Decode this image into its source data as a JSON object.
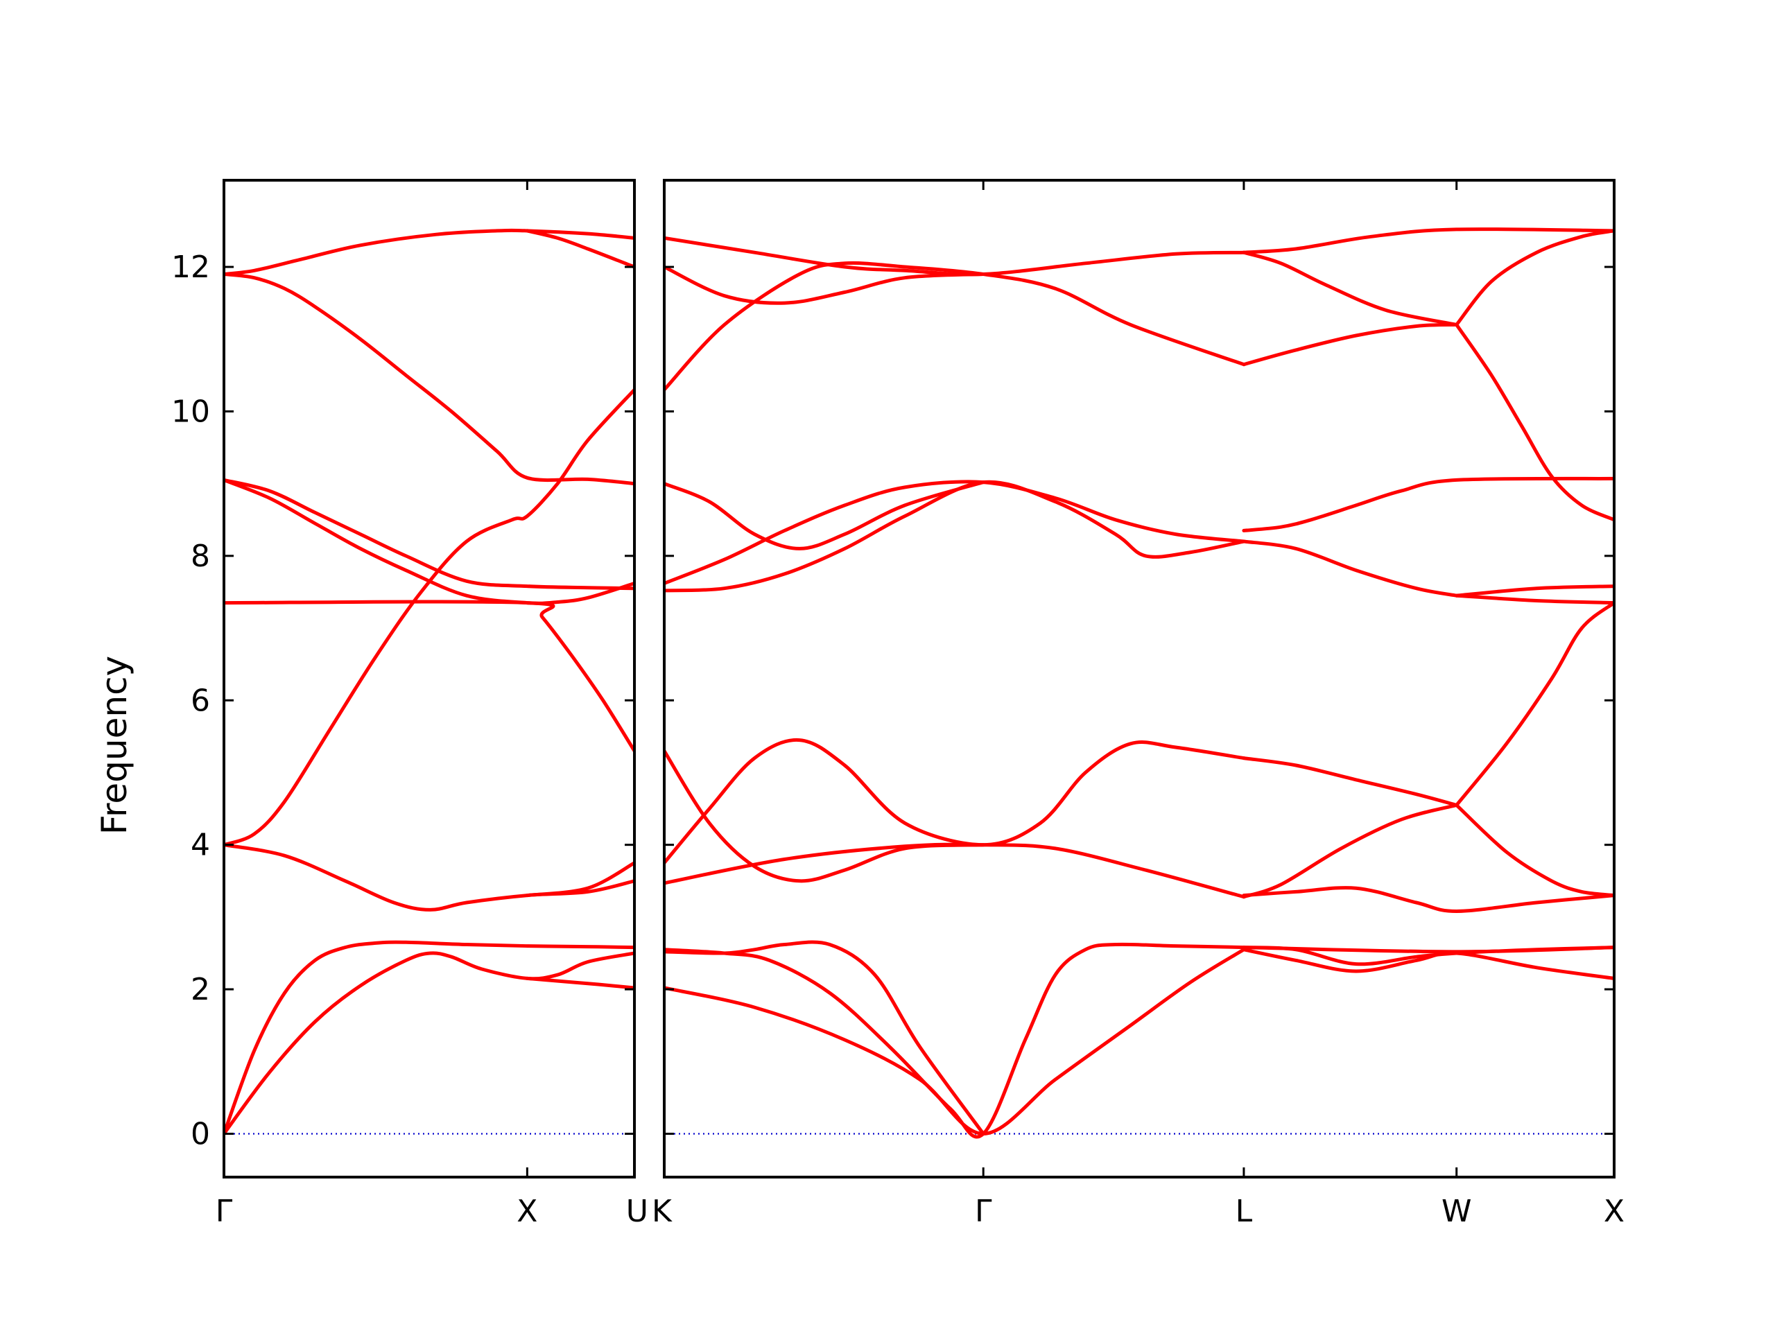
{
  "chart_data": {
    "type": "line",
    "title": "",
    "ylabel": "Frequency",
    "ylim": [
      -0.6,
      13.2
    ],
    "yticks": [
      0,
      2,
      4,
      6,
      8,
      10,
      12
    ],
    "colors": {
      "band": "#ff0000",
      "zero_line": "#0000cc"
    },
    "grid": false,
    "panels": [
      {
        "name": "left",
        "xlim": [
          0,
          1.3536
        ],
        "xticks": [
          {
            "x": 0,
            "label": "Γ"
          },
          {
            "x": 1.0,
            "label": "X"
          },
          {
            "x": 1.3536,
            "label": "U"
          }
        ],
        "series": [
          {
            "x": [
              0,
              0.15,
              0.3,
              0.45,
              0.6,
              0.68,
              0.75,
              0.85,
              1.0,
              1.1,
              1.2,
              1.3536
            ],
            "y": [
              0,
              0.85,
              1.55,
              2.05,
              2.4,
              2.5,
              2.45,
              2.28,
              2.15,
              2.2,
              2.38,
              2.5
            ]
          },
          {
            "x": [
              0,
              0.1,
              0.2,
              0.3,
              0.4,
              0.5,
              0.6,
              0.8,
              1.0,
              1.2,
              1.3536
            ],
            "y": [
              0,
              1.15,
              1.95,
              2.4,
              2.58,
              2.64,
              2.65,
              2.62,
              2.6,
              2.59,
              2.58
            ]
          },
          {
            "x": [
              0,
              0.2,
              0.4,
              0.56,
              0.68,
              0.8,
              1.0,
              1.2,
              1.3536
            ],
            "y": [
              4.0,
              3.85,
              3.5,
              3.2,
              3.1,
              3.2,
              3.3,
              3.35,
              3.5
            ]
          },
          {
            "x": [
              0,
              0.1,
              0.2,
              0.35,
              0.5,
              0.65,
              0.8,
              0.95,
              1.0,
              1.1,
              1.2,
              1.3536
            ],
            "y": [
              4.0,
              4.15,
              4.6,
              5.6,
              6.6,
              7.5,
              8.2,
              8.5,
              8.55,
              9.0,
              9.6,
              10.3
            ]
          },
          {
            "x": [
              0,
              0.15,
              0.3,
              0.45,
              0.6,
              0.8,
              1.0,
              1.2,
              1.3536
            ],
            "y": [
              9.05,
              8.9,
              8.6,
              8.3,
              8.0,
              7.65,
              7.58,
              7.56,
              7.55
            ]
          },
          {
            "x": [
              0,
              0.15,
              0.3,
              0.45,
              0.6,
              0.8,
              1.0,
              1.1,
              1.2,
              1.3536
            ],
            "y": [
              9.05,
              8.8,
              8.45,
              8.1,
              7.8,
              7.45,
              7.35,
              7.36,
              7.42,
              7.62
            ]
          },
          {
            "x": [
              0,
              0.1,
              0.2,
              0.3,
              0.45,
              0.6,
              0.75,
              0.9,
              1.0,
              1.2,
              1.3536
            ],
            "y": [
              11.9,
              11.85,
              11.7,
              11.45,
              11.0,
              10.5,
              10.0,
              9.45,
              9.08,
              9.06,
              9.0
            ]
          },
          {
            "x": [
              0,
              1.0,
              1.05,
              1.15,
              1.25,
              1.3536
            ],
            "y": [
              7.35,
              7.35,
              7.15,
              6.6,
              6.0,
              5.3
            ]
          },
          {
            "x": [
              0,
              0.1,
              0.25,
              0.45,
              0.7,
              0.9,
              1.0,
              1.2,
              1.3536
            ],
            "y": [
              11.9,
              11.95,
              12.1,
              12.3,
              12.45,
              12.5,
              12.5,
              12.46,
              12.4
            ]
          },
          {
            "x": [
              1.0,
              1.1,
              1.2,
              1.3536
            ],
            "y": [
              12.5,
              12.4,
              12.25,
              12.0
            ]
          },
          {
            "x": [
              1.0,
              1.2,
              1.3536
            ],
            "y": [
              2.15,
              2.08,
              2.02
            ]
          },
          {
            "x": [
              1.0,
              1.2,
              1.3536
            ],
            "y": [
              3.3,
              3.4,
              3.75
            ]
          }
        ]
      },
      {
        "name": "right",
        "xlim": [
          0,
          3.1577
        ],
        "xticks": [
          {
            "x": 0,
            "label": "K"
          },
          {
            "x": 1.0607,
            "label": "Γ"
          },
          {
            "x": 1.9267,
            "label": "L"
          },
          {
            "x": 2.6338,
            "label": "W"
          },
          {
            "x": 3.1577,
            "label": "X"
          }
        ],
        "series": [
          {
            "x": [
              0,
              0.3,
              0.6,
              0.85,
              1.0607,
              1.3,
              1.55,
              1.75,
              1.9267
            ],
            "y": [
              2.02,
              1.75,
              1.3,
              0.75,
              0,
              0.75,
              1.5,
              2.1,
              2.55
            ]
          },
          {
            "x": [
              0,
              0.2,
              0.35,
              0.55,
              0.75,
              0.95,
              1.0607,
              1.2,
              1.3,
              1.4,
              1.5,
              1.7,
              1.9267
            ],
            "y": [
              2.55,
              2.5,
              2.4,
              1.95,
              1.2,
              0.35,
              0,
              1.3,
              2.2,
              2.55,
              2.62,
              2.6,
              2.58
            ]
          },
          {
            "x": [
              0,
              0.2,
              0.3,
              0.4,
              0.55,
              0.7,
              0.85,
              1.0607
            ],
            "y": [
              2.52,
              2.5,
              2.55,
              2.62,
              2.62,
              2.2,
              1.2,
              0
            ]
          },
          {
            "x": [
              0,
              0.4,
              0.8,
              1.0607,
              1.3,
              1.6,
              1.9267
            ],
            "y": [
              3.47,
              3.8,
              3.98,
              4.0,
              3.95,
              3.65,
              3.28
            ]
          },
          {
            "x": [
              0,
              0.15,
              0.3,
              0.45,
              0.6,
              0.8,
              1.0607
            ],
            "y": [
              5.3,
              4.3,
              3.7,
              3.5,
              3.65,
              3.95,
              4.0
            ]
          },
          {
            "x": [
              0,
              0.15,
              0.3,
              0.45,
              0.6,
              0.8,
              1.0607,
              1.25,
              1.4,
              1.55,
              1.7,
              1.9267
            ],
            "y": [
              3.75,
              4.5,
              5.2,
              5.45,
              5.1,
              4.3,
              4.0,
              4.3,
              5.0,
              5.4,
              5.35,
              5.2
            ]
          },
          {
            "x": [
              0,
              0.2,
              0.4,
              0.6,
              0.8,
              1.0607,
              1.3,
              1.5,
              1.6,
              1.75,
              1.9267
            ],
            "y": [
              7.52,
              7.55,
              7.75,
              8.1,
              8.55,
              9.02,
              8.75,
              8.3,
              8.0,
              8.05,
              8.2
            ]
          },
          {
            "x": [
              0,
              0.2,
              0.4,
              0.6,
              0.8,
              1.0607,
              1.3,
              1.5,
              1.7,
              1.9267
            ],
            "y": [
              7.62,
              7.95,
              8.35,
              8.7,
              8.95,
              9.02,
              8.8,
              8.5,
              8.3,
              8.2
            ]
          },
          {
            "x": [
              0,
              0.15,
              0.3,
              0.45,
              0.6,
              0.8,
              1.0607
            ],
            "y": [
              9.0,
              8.75,
              8.3,
              8.1,
              8.3,
              8.7,
              9.02
            ]
          },
          {
            "x": [
              0,
              0.2,
              0.45,
              0.6,
              0.8,
              1.0607,
              1.3,
              1.55,
              1.9267
            ],
            "y": [
              10.3,
              11.2,
              11.9,
              12.05,
              12.0,
              11.9,
              11.7,
              11.2,
              10.65
            ]
          },
          {
            "x": [
              0,
              0.2,
              0.4,
              0.6,
              0.8,
              1.0607
            ],
            "y": [
              12.0,
              11.6,
              11.5,
              11.65,
              11.85,
              11.9
            ]
          },
          {
            "x": [
              0,
              0.3,
              0.6,
              0.8,
              1.0607,
              1.4,
              1.7,
              1.9267
            ],
            "y": [
              12.4,
              12.2,
              12.0,
              11.95,
              11.9,
              12.05,
              12.18,
              12.2
            ]
          },
          {
            "x": [
              1.9267,
              2.1,
              2.3,
              2.5,
              2.6338
            ],
            "y": [
              10.65,
              10.85,
              11.05,
              11.18,
              11.2
            ]
          },
          {
            "x": [
              1.9267,
              2.05,
              2.2,
              2.4,
              2.6338
            ],
            "y": [
              12.2,
              12.05,
              11.75,
              11.4,
              11.2
            ]
          },
          {
            "x": [
              1.9267,
              2.1,
              2.35,
              2.6338,
              3.1577
            ],
            "y": [
              12.2,
              12.25,
              12.42,
              12.52,
              12.5
            ]
          },
          {
            "x": [
              1.9267,
              2.1,
              2.3,
              2.5,
              2.6338
            ],
            "y": [
              8.2,
              8.1,
              7.8,
              7.55,
              7.45
            ]
          },
          {
            "x": [
              1.9267,
              2.05,
              2.15,
              2.3,
              2.45,
              2.6338,
              3.1577
            ],
            "y": [
              8.35,
              8.4,
              8.5,
              8.7,
              8.9,
              9.05,
              9.07
            ]
          },
          {
            "x": [
              1.9267,
              2.1,
              2.3,
              2.5,
              2.6338
            ],
            "y": [
              5.2,
              5.1,
              4.9,
              4.7,
              4.55
            ]
          },
          {
            "x": [
              1.9267,
              2.05,
              2.25,
              2.45,
              2.6338
            ],
            "y": [
              3.28,
              3.45,
              3.95,
              4.35,
              4.55
            ]
          },
          {
            "x": [
              1.9267,
              2.1,
              2.3,
              2.5,
              2.6338,
              2.9,
              3.1577
            ],
            "y": [
              3.3,
              3.35,
              3.4,
              3.2,
              3.08,
              3.2,
              3.3
            ]
          },
          {
            "x": [
              1.9267,
              2.1,
              2.3,
              2.5,
              2.6338,
              2.9,
              3.1577
            ],
            "y": [
              2.55,
              2.4,
              2.25,
              2.4,
              2.5,
              2.3,
              2.15
            ]
          },
          {
            "x": [
              1.9267,
              2.1,
              2.3,
              2.5,
              2.6338,
              2.9,
              3.1577
            ],
            "y": [
              2.58,
              2.55,
              2.35,
              2.45,
              2.5,
              2.55,
              2.58
            ]
          },
          {
            "x": [
              1.9267,
              2.6338,
              3.1577
            ],
            "y": [
              2.58,
              2.52,
              2.58
            ]
          },
          {
            "x": [
              2.6338,
              2.75,
              2.9,
              3.05,
              3.1577
            ],
            "y": [
              11.2,
              11.8,
              12.2,
              12.42,
              12.5
            ]
          },
          {
            "x": [
              2.6338,
              2.75,
              2.85,
              2.95,
              3.05,
              3.1577
            ],
            "y": [
              11.2,
              10.5,
              9.8,
              9.1,
              8.7,
              8.5
            ]
          },
          {
            "x": [
              2.6338,
              2.9,
              3.1577
            ],
            "y": [
              7.45,
              7.55,
              7.58
            ]
          },
          {
            "x": [
              2.6338,
              2.8,
              2.95,
              3.05,
              3.1577
            ],
            "y": [
              4.55,
              5.4,
              6.3,
              7.0,
              7.35
            ]
          },
          {
            "x": [
              2.6338,
              2.8,
              2.95,
              3.05,
              3.1577
            ],
            "y": [
              4.55,
              3.9,
              3.5,
              3.35,
              3.3
            ]
          },
          {
            "x": [
              2.6338,
              2.9,
              3.1577
            ],
            "y": [
              7.45,
              7.38,
              7.35
            ]
          }
        ]
      }
    ]
  }
}
